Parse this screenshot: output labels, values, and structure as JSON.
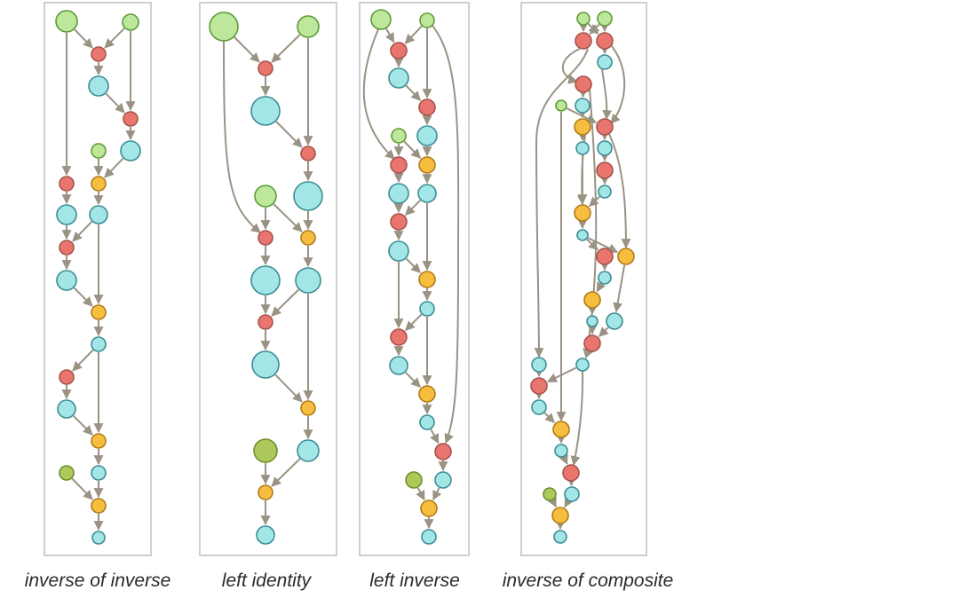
{
  "palette": {
    "edge": "#9a9384",
    "green": {
      "fill": "#bde79b",
      "stroke": "#5f9a37"
    },
    "olive": {
      "fill": "#adc95b",
      "stroke": "#6f8f2c"
    },
    "red": {
      "fill": "#e8766e",
      "stroke": "#a6534c"
    },
    "cyan": {
      "fill": "#a3e6e8",
      "stroke": "#3c8c92"
    },
    "orange": {
      "fill": "#f6bd3f",
      "stroke": "#b07c18"
    }
  },
  "panels": [
    {
      "caption": "inverse of inverse"
    },
    {
      "caption": "left identity"
    },
    {
      "caption": "left inverse"
    },
    {
      "caption": "inverse of composite"
    }
  ]
}
